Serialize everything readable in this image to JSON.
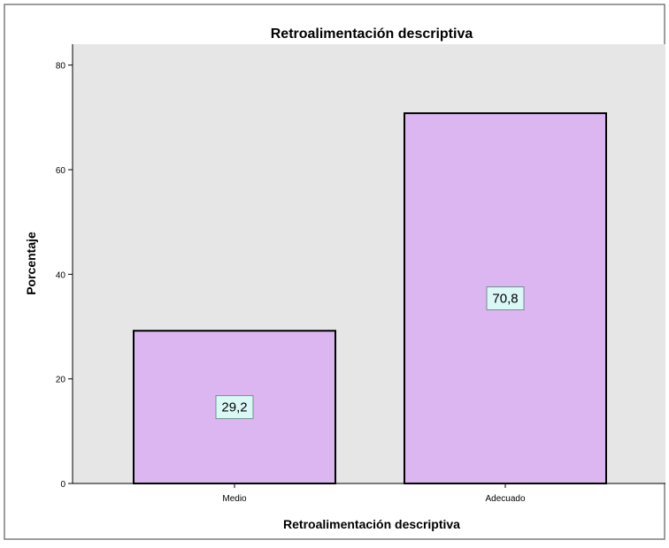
{
  "colors": {
    "plot_background": "#e6e6e6",
    "bar_fill": "#dcb6f0",
    "bar_stroke": "#000000",
    "label_box_fill": "#d9f8f6",
    "label_box_stroke": "#6f8f8c",
    "outer_border": "#7d7d7d"
  },
  "chart_data": {
    "type": "bar",
    "title": "Retroalimentación descriptiva",
    "xlabel": "Retroalimentación descriptiva",
    "ylabel": "Porcentaje",
    "categories": [
      "Medio",
      "Adecuado"
    ],
    "values": [
      29.2,
      70.8
    ],
    "data_labels": [
      "29,2",
      "70,8"
    ],
    "ylim": [
      0,
      84
    ],
    "yticks": [
      0,
      20,
      40,
      60,
      80
    ],
    "ytick_labels": [
      "0",
      "20",
      "40",
      "60",
      "80"
    ],
    "grid": false,
    "legend": "none"
  }
}
